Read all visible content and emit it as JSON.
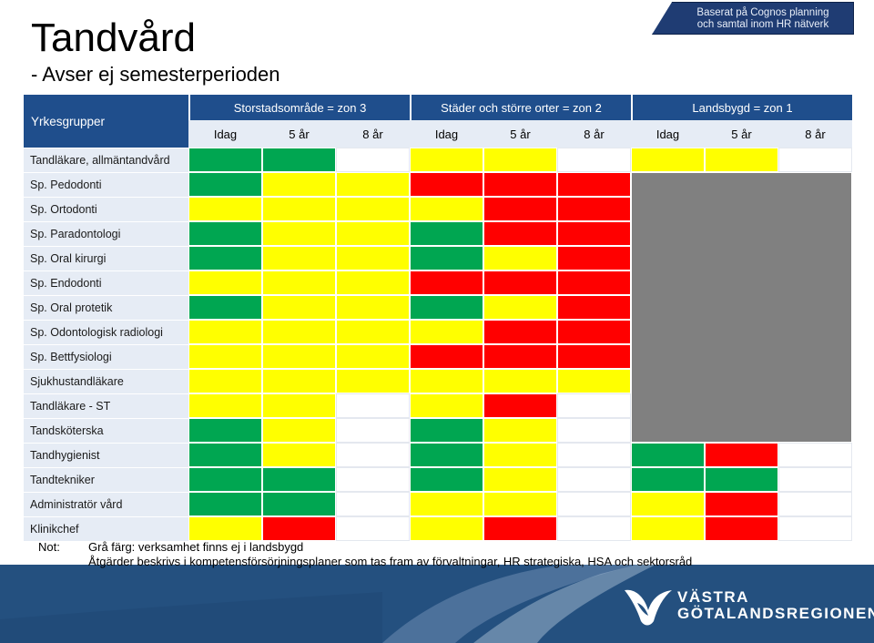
{
  "header": {
    "title": "Tandvård",
    "subtitle": "- Avser ej semesterperioden",
    "source_note_line1": "Baserat på Cognos planning",
    "source_note_line2": "och samtal inom HR nätverk"
  },
  "table": {
    "corner_label": "Yrkesgrupper",
    "zones": [
      "Storstadsområde = zon 3",
      "Städer och större orter = zon 2",
      "Landsbygd = zon 1"
    ],
    "subheaders": [
      "Idag",
      "5 år",
      "8 år",
      "Idag",
      "5 år",
      "8 år",
      "Idag",
      "5 år",
      "8 år"
    ],
    "rows": [
      {
        "label": "Tandläkare, allmäntandvård",
        "cells": [
          "green",
          "green",
          "white",
          "yellow",
          "yellow",
          "white",
          "yellow",
          "yellow",
          "white"
        ]
      },
      {
        "label": "Sp. Pedodonti",
        "cells": [
          "green",
          "yellow",
          "yellow",
          "red",
          "red",
          "red",
          "grey",
          "grey",
          "grey"
        ]
      },
      {
        "label": "Sp. Ortodonti",
        "cells": [
          "yellow",
          "yellow",
          "yellow",
          "yellow",
          "red",
          "red",
          "grey",
          "grey",
          "grey"
        ]
      },
      {
        "label": "Sp. Paradontologi",
        "cells": [
          "green",
          "yellow",
          "yellow",
          "green",
          "red",
          "red",
          "grey",
          "grey",
          "grey"
        ]
      },
      {
        "label": "Sp. Oral kirurgi",
        "cells": [
          "green",
          "yellow",
          "yellow",
          "green",
          "yellow",
          "red",
          "grey",
          "grey",
          "grey"
        ]
      },
      {
        "label": "Sp. Endodonti",
        "cells": [
          "yellow",
          "yellow",
          "yellow",
          "red",
          "red",
          "red",
          "grey",
          "grey",
          "grey"
        ]
      },
      {
        "label": "Sp. Oral protetik",
        "cells": [
          "green",
          "yellow",
          "yellow",
          "green",
          "yellow",
          "red",
          "grey",
          "grey",
          "grey"
        ]
      },
      {
        "label": "Sp. Odontologisk radiologi",
        "cells": [
          "yellow",
          "yellow",
          "yellow",
          "yellow",
          "red",
          "red",
          "grey",
          "grey",
          "grey"
        ]
      },
      {
        "label": "Sp. Bettfysiologi",
        "cells": [
          "yellow",
          "yellow",
          "yellow",
          "red",
          "red",
          "red",
          "grey",
          "grey",
          "grey"
        ]
      },
      {
        "label": "Sjukhustandläkare",
        "cells": [
          "yellow",
          "yellow",
          "yellow",
          "yellow",
          "yellow",
          "yellow",
          "grey",
          "grey",
          "grey"
        ]
      },
      {
        "label": "Tandläkare - ST",
        "cells": [
          "yellow",
          "yellow",
          "white",
          "yellow",
          "red",
          "white",
          "grey",
          "grey",
          "grey"
        ]
      },
      {
        "label": "Tandsköterska",
        "cells": [
          "green",
          "yellow",
          "white",
          "green",
          "yellow",
          "white",
          "green",
          "red",
          "white"
        ]
      },
      {
        "label": "Tandhygienist",
        "cells": [
          "green",
          "yellow",
          "white",
          "green",
          "yellow",
          "white",
          "green",
          "red",
          "white"
        ]
      },
      {
        "label": "Tandtekniker",
        "cells": [
          "green",
          "green",
          "white",
          "green",
          "yellow",
          "white",
          "green",
          "green",
          "white"
        ]
      },
      {
        "label": "Administratör vård",
        "cells": [
          "green",
          "green",
          "white",
          "yellow",
          "yellow",
          "white",
          "yellow",
          "red",
          "white"
        ]
      },
      {
        "label": "Klinikchef",
        "cells": [
          "yellow",
          "red",
          "white",
          "yellow",
          "red",
          "white",
          "yellow",
          "red",
          "white"
        ]
      }
    ]
  },
  "notes": {
    "label": "Not:",
    "line1": "Grå färg: verksamhet finns ej i landsbygd",
    "line2": "Åtgärder beskrivs i kompetensförsörjningsplaner som tas fram av förvaltningar, HR strategiska, HSA och sektorsråd"
  },
  "logo": {
    "line1": "VÄSTRA",
    "line2": "GÖTALANDSREGIONEN"
  },
  "colors": {
    "green": "#00a651",
    "yellow": "#ffff00",
    "red": "#ff0000",
    "white": "#ffffff",
    "grey": "#808080",
    "header_blue": "#1f4e8c",
    "footer_blue": "#24507f"
  }
}
